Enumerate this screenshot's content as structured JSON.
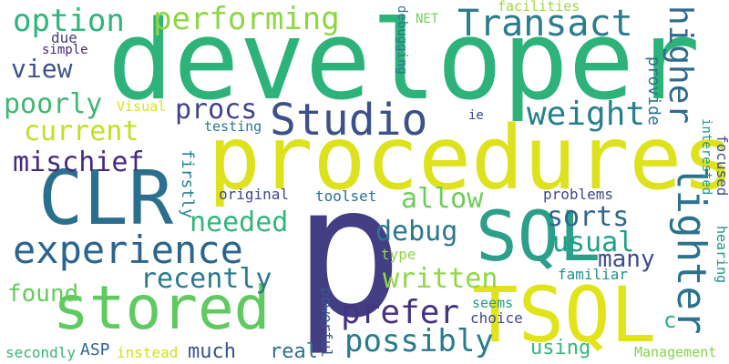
{
  "words": [
    {
      "text": "developer",
      "color": "#2db37a",
      "vertical": false
    },
    {
      "text": "procedures",
      "color": "#dde21c",
      "vertical": false
    },
    {
      "text": "p",
      "color": "#433d84",
      "vertical": false
    },
    {
      "text": "CLR",
      "color": "#2a6f8e",
      "vertical": false
    },
    {
      "text": "stored",
      "color": "#5fca60",
      "vertical": false
    },
    {
      "text": "SQL",
      "color": "#2c9f8a",
      "vertical": false
    },
    {
      "text": "TSQL",
      "color": "#e2e41a",
      "vertical": false
    },
    {
      "text": "experience",
      "color": "#2b648d",
      "vertical": false
    },
    {
      "text": "Studio",
      "color": "#3c518a",
      "vertical": false
    },
    {
      "text": "Transact",
      "color": "#2a7c8e",
      "vertical": false
    },
    {
      "text": "option",
      "color": "#2fb47c",
      "vertical": false
    },
    {
      "text": "performing",
      "color": "#8ed644",
      "vertical": false
    },
    {
      "text": "higher",
      "color": "#2f6b8e",
      "vertical": true
    },
    {
      "text": "lighter",
      "color": "#2c728e",
      "vertical": true
    },
    {
      "text": "weight",
      "color": "#27808e",
      "vertical": false
    },
    {
      "text": "view",
      "color": "#3b528b",
      "vertical": false
    },
    {
      "text": "poorly",
      "color": "#3eb873",
      "vertical": false
    },
    {
      "text": "current",
      "color": "#c2df23",
      "vertical": false
    },
    {
      "text": "procs",
      "color": "#414487",
      "vertical": false
    },
    {
      "text": "mischief",
      "color": "#472a7a",
      "vertical": false
    },
    {
      "text": "allow",
      "color": "#6ccd5a",
      "vertical": false
    },
    {
      "text": "needed",
      "color": "#32b67a",
      "vertical": false
    },
    {
      "text": "debug",
      "color": "#2a778e",
      "vertical": false
    },
    {
      "text": "sorts",
      "color": "#31658e",
      "vertical": false
    },
    {
      "text": "usual",
      "color": "#1fa187",
      "vertical": false
    },
    {
      "text": "many",
      "color": "#3d4e8a",
      "vertical": false
    },
    {
      "text": "recently",
      "color": "#297a8e",
      "vertical": false
    },
    {
      "text": "written",
      "color": "#8fd744",
      "vertical": false
    },
    {
      "text": "found",
      "color": "#65cb5e",
      "vertical": false
    },
    {
      "text": "prefer",
      "color": "#46337f",
      "vertical": false
    },
    {
      "text": "possibly",
      "color": "#287c8e",
      "vertical": false
    },
    {
      "text": "much",
      "color": "#3b528b",
      "vertical": false
    },
    {
      "text": "real",
      "color": "#2c728e",
      "vertical": false
    },
    {
      "text": "using",
      "color": "#35b779",
      "vertical": false
    },
    {
      "text": "ASP",
      "color": "#33638d",
      "vertical": false
    },
    {
      "text": "instead",
      "color": "#d2e21b",
      "vertical": false
    },
    {
      "text": "secondly",
      "color": "#35b779",
      "vertical": false
    },
    {
      "text": "Management",
      "color": "#84d44b",
      "vertical": false
    },
    {
      "text": "powerful",
      "color": "#38588c",
      "vertical": true
    },
    {
      "text": "choice",
      "color": "#3f4889",
      "vertical": false
    },
    {
      "text": "seems",
      "color": "#1f9e89",
      "vertical": false
    },
    {
      "text": "familiar",
      "color": "#21918c",
      "vertical": false
    },
    {
      "text": "type",
      "color": "#8fd744",
      "vertical": false
    },
    {
      "text": "problems",
      "color": "#3e4989",
      "vertical": false
    },
    {
      "text": "toolset",
      "color": "#2d708e",
      "vertical": false
    },
    {
      "text": "original",
      "color": "#3e4a89",
      "vertical": false
    },
    {
      "text": "firstly",
      "color": "#26828e",
      "vertical": true
    },
    {
      "text": "testing",
      "color": "#2a788e",
      "vertical": false
    },
    {
      "text": "Visual",
      "color": "#dae319",
      "vertical": false
    },
    {
      "text": "simple",
      "color": "#482576",
      "vertical": false
    },
    {
      "text": "due",
      "color": "#433e85",
      "vertical": false
    },
    {
      "text": "NET",
      "color": "#75d054",
      "vertical": false
    },
    {
      "text": "debugging",
      "color": "#2a768e",
      "vertical": true
    },
    {
      "text": "facilities",
      "color": "#9bd93c",
      "vertical": false
    },
    {
      "text": "ie",
      "color": "#3f4889",
      "vertical": false
    },
    {
      "text": "provide",
      "color": "#2d718e",
      "vertical": true
    },
    {
      "text": "interested",
      "color": "#1e9c89",
      "vertical": true
    },
    {
      "text": "focused",
      "color": "#3a538b",
      "vertical": true
    },
    {
      "text": "hearing",
      "color": "#20938c",
      "vertical": true
    },
    {
      "text": "c",
      "color": "#2ab07f",
      "vertical": false
    }
  ]
}
